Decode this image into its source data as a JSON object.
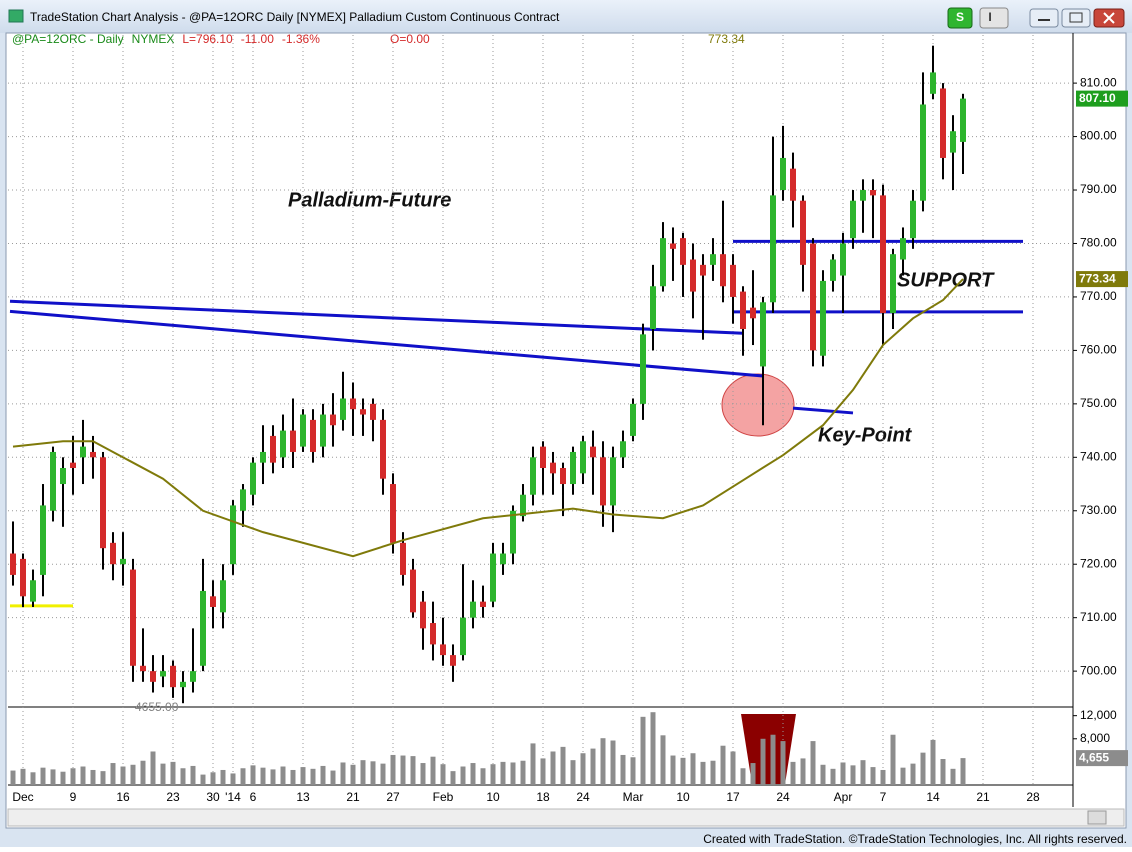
{
  "window": {
    "title": "TradeStation Chart Analysis - @PA=12ORC Daily [NYMEX] Palladium Custom Continuous Contract",
    "buttons": [
      "S",
      "I"
    ],
    "footer": "Created with TradeStation. ©TradeStation Technologies, Inc. All rights reserved."
  },
  "chart_data": {
    "type": "candlestick",
    "header": {
      "symbol": "@PA=12ORC - Daily",
      "exchange": "NYMEX",
      "last": "L=796.10",
      "change": "-11.00",
      "change_pct": "-1.36%",
      "open": "O=0.00"
    },
    "annotations": {
      "title": "Palladium-Future",
      "support": "SUPPORT",
      "key_point": "Key-Point"
    },
    "low_label": "4655.00",
    "categories": [
      null,
      "Dec",
      null,
      null,
      null,
      null,
      "9",
      null,
      null,
      null,
      null,
      "16",
      null,
      null,
      null,
      null,
      "23",
      null,
      null,
      null,
      "30",
      null,
      "'14",
      null,
      "6",
      null,
      null,
      null,
      null,
      "13",
      null,
      null,
      null,
      null,
      "21",
      null,
      null,
      null,
      "27",
      null,
      null,
      null,
      null,
      "Feb",
      null,
      null,
      null,
      null,
      "10",
      null,
      null,
      null,
      null,
      "18",
      null,
      null,
      null,
      "24",
      null,
      null,
      null,
      null,
      "Mar",
      null,
      null,
      null,
      null,
      "10",
      null,
      null,
      null,
      null,
      "17",
      null,
      null,
      null,
      null,
      "24",
      null,
      null,
      null,
      null,
      null,
      "Apr",
      null,
      null,
      null,
      "7",
      null,
      null,
      null,
      null,
      "14",
      null,
      null,
      null,
      null,
      "21",
      null,
      null,
      null,
      null,
      "28",
      null,
      null,
      null
    ],
    "open": [
      722,
      721,
      713,
      718,
      730,
      735,
      739,
      740,
      741,
      740,
      724,
      720,
      719,
      701,
      700,
      699,
      701,
      697,
      698,
      701,
      714,
      711,
      720,
      730,
      733,
      739,
      744,
      740,
      745,
      742,
      747,
      742,
      748,
      747,
      751,
      749,
      750,
      747,
      735,
      724,
      719,
      713,
      709,
      705,
      703,
      703,
      710,
      713,
      713,
      720,
      722,
      729,
      733,
      742,
      739,
      738,
      735,
      737,
      742,
      740,
      731,
      740,
      744,
      750,
      764,
      772,
      780,
      781,
      777,
      776,
      776,
      778,
      776,
      771,
      768,
      757,
      769,
      790,
      794,
      788,
      780,
      759,
      773,
      774,
      781,
      788,
      790,
      789,
      767,
      777,
      781,
      788,
      808,
      809,
      797,
      799,
      null,
      null,
      null,
      null,
      null,
      null,
      null,
      null,
      null,
      null
    ],
    "high": [
      728,
      722,
      719,
      735,
      742,
      740,
      744,
      747,
      744,
      741,
      726,
      726,
      721,
      708,
      703,
      703,
      702,
      700,
      708,
      721,
      717,
      720,
      732,
      735,
      740,
      746,
      746,
      748,
      751,
      749,
      749,
      750,
      752,
      756,
      754,
      751,
      751,
      749,
      737,
      726,
      721,
      715,
      713,
      710,
      705,
      720,
      717,
      716,
      724,
      724,
      731,
      735,
      742,
      743,
      741,
      739,
      742,
      744,
      745,
      743,
      742,
      745,
      751,
      765,
      776,
      784,
      783,
      782,
      780,
      778,
      781,
      788,
      778,
      772,
      775,
      770,
      800,
      802,
      797,
      789,
      781,
      775,
      778,
      782,
      790,
      792,
      792,
      791,
      779,
      783,
      790,
      812,
      817,
      810,
      804,
      808,
      null,
      null,
      null,
      null,
      null,
      null,
      null,
      null,
      null,
      null
    ],
    "low": [
      716,
      712,
      712,
      714,
      728,
      727,
      733,
      735,
      736,
      719,
      717,
      716,
      698,
      698,
      696,
      697,
      695,
      694,
      696,
      700,
      708,
      708,
      718,
      727,
      731,
      735,
      737,
      738,
      738,
      741,
      739,
      740,
      742,
      745,
      744,
      744,
      743,
      733,
      722,
      716,
      710,
      704,
      702,
      701,
      698,
      702,
      708,
      710,
      712,
      718,
      720,
      728,
      731,
      733,
      733,
      729,
      733,
      735,
      733,
      727,
      726,
      738,
      743,
      747,
      760,
      771,
      773,
      770,
      766,
      762,
      773,
      769,
      765,
      759,
      761,
      746,
      767,
      788,
      783,
      771,
      757,
      757,
      771,
      767,
      779,
      782,
      781,
      761,
      764,
      774,
      779,
      786,
      807,
      792,
      790,
      793,
      null,
      null,
      null,
      null,
      null,
      null,
      null,
      null,
      null,
      null
    ],
    "close": [
      718,
      714,
      717,
      731,
      741,
      738,
      738,
      742,
      740,
      723,
      720,
      721,
      701,
      700,
      698,
      700,
      697,
      698,
      700,
      715,
      712,
      717,
      731,
      734,
      739,
      741,
      739,
      745,
      741,
      748,
      741,
      748,
      746,
      751,
      749,
      748,
      747,
      736,
      724,
      718,
      711,
      708,
      705,
      703,
      701,
      710,
      713,
      712,
      722,
      722,
      730,
      733,
      740,
      738,
      737,
      735,
      741,
      743,
      740,
      731,
      740,
      743,
      750,
      763,
      772,
      781,
      779,
      776,
      771,
      774,
      778,
      772,
      770,
      764,
      766,
      769,
      789,
      796,
      788,
      776,
      760,
      773,
      777,
      780,
      788,
      790,
      789,
      767,
      778,
      781,
      788,
      806,
      812,
      796,
      801,
      807.1,
      null,
      null,
      null,
      null,
      null,
      null,
      null,
      null,
      null,
      null
    ],
    "up_color": "#2db52d",
    "down_color": "#d42a2a",
    "wick_color": "#000000",
    "ylim": [
      694.6,
      819
    ],
    "yticks": [
      {
        "value": 700,
        "label": "700.00"
      },
      {
        "value": 710,
        "label": "710.00"
      },
      {
        "value": 720,
        "label": "720.00"
      },
      {
        "value": 730,
        "label": "730.00"
      },
      {
        "value": 740,
        "label": "740.00"
      },
      {
        "value": 750,
        "label": "750.00"
      },
      {
        "value": 760,
        "label": "760.00"
      },
      {
        "value": 770,
        "label": "770.00"
      },
      {
        "value": 780,
        "label": "780.00"
      },
      {
        "value": 790,
        "label": "790.00"
      },
      {
        "value": 800,
        "label": "800.00"
      },
      {
        "value": 810,
        "label": "810.00"
      }
    ],
    "grid": true,
    "last_price": {
      "value": 807.1,
      "label": "807.10",
      "color": "#1e9e1e"
    },
    "moving_average": {
      "color": "#7f7a0a",
      "x": [
        0,
        5,
        8,
        10,
        15,
        19,
        25,
        34,
        39,
        47,
        56,
        60,
        65,
        69,
        73,
        77,
        81,
        84,
        87,
        90,
        93,
        95
      ],
      "values": [
        742,
        743,
        743,
        741,
        736,
        730,
        726,
        721.5,
        724.5,
        728.6,
        730.4,
        729.3,
        728.6,
        731,
        735.7,
        740.4,
        746,
        752.6,
        761,
        766,
        769.4,
        773.34
      ],
      "last": {
        "value": 773.34,
        "label": "773.34"
      }
    },
    "trendlines": [
      {
        "color": "#1010c8",
        "x": [
          -0.3,
          73
        ],
        "values": [
          769.2,
          763.2
        ]
      },
      {
        "color": "#1010c8",
        "x": [
          -0.3,
          75
        ],
        "values": [
          767.3,
          755.2
        ]
      },
      {
        "color": "#1010c8",
        "x": [
          78,
          84
        ],
        "values": [
          749.2,
          748.3
        ]
      },
      {
        "color": "#1010c8",
        "x": [
          72,
          101
        ],
        "values": [
          780.4,
          780.4
        ]
      },
      {
        "color": "#1010c8",
        "x": [
          72,
          101
        ],
        "values": [
          767.2,
          767.2
        ]
      },
      {
        "color": "#f0f000",
        "x": [
          -0.3,
          6
        ],
        "values": [
          712.2,
          712.2
        ]
      }
    ],
    "volume": {
      "color": "#8c8c8c",
      "ylim": [
        0,
        13500
      ],
      "yticks": [
        {
          "value": 12000,
          "label": "12,000"
        },
        {
          "value": 8000,
          "label": "8,000"
        }
      ],
      "last": {
        "value": 4655,
        "label": "4,655"
      },
      "values": [
        2500,
        2800,
        2200,
        3000,
        2700,
        2300,
        2900,
        3200,
        2600,
        2400,
        3800,
        3200,
        3500,
        4200,
        5800,
        3700,
        4000,
        2900,
        3300,
        1800,
        2200,
        2600,
        2000,
        2900,
        3400,
        3000,
        2700,
        3200,
        2600,
        3100,
        2800,
        3300,
        2500,
        3900,
        3500,
        4300,
        4100,
        3700,
        5200,
        5100,
        5000,
        3800,
        4900,
        3600,
        2400,
        3200,
        3800,
        2900,
        3600,
        4000,
        3900,
        4200,
        7200,
        4600,
        5800,
        6600,
        4300,
        5500,
        6300,
        8100,
        7700,
        5200,
        4800,
        11800,
        12600,
        8600,
        5100,
        4700,
        5500,
        4000,
        4200,
        6800,
        5800,
        2900,
        3800,
        8000,
        8700,
        7600,
        4000,
        4600,
        7600,
        3500,
        2800,
        3900,
        3400,
        4300,
        3100,
        2600,
        8700,
        3000,
        3700,
        5600,
        7800,
        4500,
        2800,
        4655,
        null,
        null,
        null,
        null,
        null,
        null,
        null,
        null,
        null,
        null
      ]
    }
  }
}
